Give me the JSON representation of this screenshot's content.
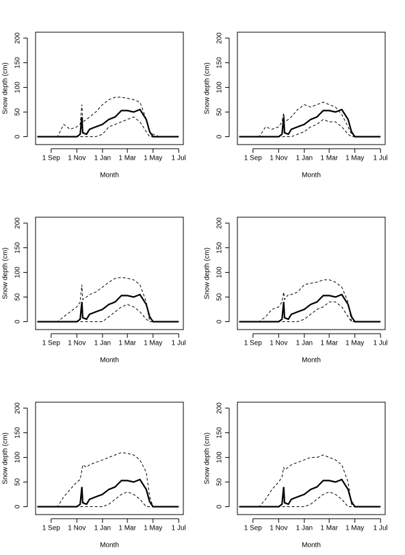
{
  "chart_data": [
    {
      "type": "line",
      "x_label": "Month",
      "y_label": "Snow depth (cm)",
      "x": [
        -2,
        15,
        31,
        46,
        61,
        76,
        92,
        100,
        104,
        106,
        115,
        122,
        137,
        153,
        168,
        183,
        198,
        212,
        227,
        242,
        257,
        265,
        273,
        288,
        303,
        320,
        334
      ],
      "xlim": [
        -6,
        345
      ],
      "xticks": [
        {
          "value": 31,
          "label": "1 Sep"
        },
        {
          "value": 92,
          "label": "1 Nov"
        },
        {
          "value": 153,
          "label": "1 Jan"
        },
        {
          "value": 212,
          "label": "1 Mar"
        },
        {
          "value": 273,
          "label": "1 May"
        },
        {
          "value": 334,
          "label": "1 Jul"
        }
      ],
      "ylim": [
        -16,
        212
      ],
      "yticks": [
        0,
        50,
        100,
        150,
        200
      ],
      "series": [
        {
          "color": "#000000",
          "style": "solid",
          "values": [
            0,
            0,
            0,
            0,
            0,
            0,
            0,
            5,
            40,
            8,
            5,
            15,
            20,
            25,
            35,
            40,
            53,
            53,
            50,
            55,
            35,
            10,
            0,
            0,
            0,
            0,
            0
          ]
        },
        {
          "color": "#000000",
          "style": "dashed",
          "values": [
            0,
            0,
            0,
            0,
            25,
            15,
            20,
            25,
            65,
            30,
            35,
            40,
            50,
            65,
            75,
            80,
            80,
            78,
            75,
            70,
            35,
            10,
            5,
            0,
            0,
            0,
            0
          ]
        },
        {
          "color": "#000000",
          "style": "dashed",
          "values": [
            0,
            0,
            0,
            0,
            0,
            0,
            0,
            0,
            0,
            0,
            0,
            0,
            0,
            5,
            20,
            25,
            30,
            35,
            40,
            30,
            10,
            0,
            0,
            0,
            0,
            0,
            0
          ]
        }
      ]
    },
    {
      "type": "line",
      "x_label": "Month",
      "y_label": "Snow depth (cm)",
      "x": [
        -2,
        15,
        31,
        46,
        61,
        76,
        92,
        100,
        104,
        106,
        115,
        122,
        137,
        153,
        168,
        183,
        198,
        212,
        227,
        242,
        257,
        265,
        273,
        288,
        303,
        320,
        334
      ],
      "xlim": [
        -6,
        345
      ],
      "xticks": [
        {
          "value": 31,
          "label": "1 Sep"
        },
        {
          "value": 92,
          "label": "1 Nov"
        },
        {
          "value": 153,
          "label": "1 Jan"
        },
        {
          "value": 212,
          "label": "1 Mar"
        },
        {
          "value": 273,
          "label": "1 May"
        },
        {
          "value": 334,
          "label": "1 Jul"
        }
      ],
      "ylim": [
        -16,
        212
      ],
      "yticks": [
        0,
        50,
        100,
        150,
        200
      ],
      "series": [
        {
          "color": "#000000",
          "style": "solid",
          "values": [
            0,
            0,
            0,
            0,
            0,
            0,
            0,
            5,
            40,
            8,
            5,
            15,
            20,
            25,
            35,
            40,
            53,
            53,
            50,
            55,
            35,
            10,
            0,
            0,
            0,
            0,
            0
          ]
        },
        {
          "color": "#000000",
          "style": "dashed",
          "values": [
            0,
            0,
            0,
            0,
            20,
            15,
            20,
            30,
            48,
            30,
            35,
            40,
            55,
            65,
            60,
            65,
            70,
            65,
            60,
            45,
            20,
            5,
            0,
            0,
            0,
            0,
            0
          ]
        },
        {
          "color": "#000000",
          "style": "dashed",
          "values": [
            0,
            0,
            0,
            0,
            0,
            0,
            0,
            0,
            0,
            0,
            0,
            0,
            5,
            10,
            20,
            25,
            35,
            30,
            30,
            20,
            5,
            0,
            0,
            0,
            0,
            0,
            0
          ]
        }
      ]
    },
    {
      "type": "line",
      "x_label": "Month",
      "y_label": "Snow depth (cm)",
      "x": [
        -2,
        15,
        31,
        46,
        61,
        76,
        92,
        100,
        104,
        106,
        115,
        122,
        137,
        153,
        168,
        183,
        198,
        212,
        227,
        242,
        257,
        265,
        273,
        288,
        303,
        320,
        334
      ],
      "xlim": [
        -6,
        345
      ],
      "xticks": [
        {
          "value": 31,
          "label": "1 Sep"
        },
        {
          "value": 92,
          "label": "1 Nov"
        },
        {
          "value": 153,
          "label": "1 Jan"
        },
        {
          "value": 212,
          "label": "1 Mar"
        },
        {
          "value": 273,
          "label": "1 May"
        },
        {
          "value": 334,
          "label": "1 Jul"
        }
      ],
      "ylim": [
        -16,
        212
      ],
      "yticks": [
        0,
        50,
        100,
        150,
        200
      ],
      "series": [
        {
          "color": "#000000",
          "style": "solid",
          "values": [
            0,
            0,
            0,
            0,
            0,
            0,
            0,
            5,
            40,
            8,
            5,
            15,
            20,
            25,
            35,
            40,
            53,
            53,
            50,
            55,
            35,
            10,
            0,
            0,
            0,
            0,
            0
          ]
        },
        {
          "color": "#000000",
          "style": "dashed",
          "values": [
            0,
            0,
            0,
            0,
            10,
            20,
            30,
            40,
            75,
            45,
            50,
            55,
            60,
            70,
            80,
            88,
            90,
            88,
            85,
            75,
            40,
            0,
            0,
            0,
            0,
            0,
            0
          ]
        },
        {
          "color": "#000000",
          "style": "dashed",
          "values": [
            0,
            0,
            0,
            0,
            0,
            0,
            0,
            0,
            0,
            0,
            0,
            0,
            0,
            0,
            10,
            20,
            30,
            35,
            30,
            20,
            5,
            0,
            0,
            0,
            0,
            0,
            0
          ]
        }
      ]
    },
    {
      "type": "line",
      "x_label": "Month",
      "y_label": "Snow depth (cm)",
      "x": [
        -2,
        15,
        31,
        46,
        61,
        76,
        92,
        100,
        104,
        106,
        115,
        122,
        137,
        153,
        168,
        183,
        198,
        212,
        227,
        242,
        257,
        265,
        273,
        288,
        303,
        320,
        334
      ],
      "xlim": [
        -6,
        345
      ],
      "xticks": [
        {
          "value": 31,
          "label": "1 Sep"
        },
        {
          "value": 92,
          "label": "1 Nov"
        },
        {
          "value": 153,
          "label": "1 Jan"
        },
        {
          "value": 212,
          "label": "1 Mar"
        },
        {
          "value": 273,
          "label": "1 May"
        },
        {
          "value": 334,
          "label": "1 Jul"
        }
      ],
      "ylim": [
        -16,
        212
      ],
      "yticks": [
        0,
        50,
        100,
        150,
        200
      ],
      "series": [
        {
          "color": "#000000",
          "style": "solid",
          "values": [
            0,
            0,
            0,
            0,
            0,
            0,
            0,
            5,
            40,
            8,
            5,
            15,
            20,
            25,
            35,
            40,
            53,
            53,
            50,
            55,
            35,
            10,
            0,
            0,
            0,
            0,
            0
          ]
        },
        {
          "color": "#000000",
          "style": "dashed",
          "values": [
            0,
            0,
            0,
            0,
            10,
            25,
            30,
            40,
            60,
            45,
            55,
            55,
            60,
            75,
            78,
            80,
            85,
            85,
            80,
            70,
            40,
            0,
            0,
            0,
            0,
            0,
            0
          ]
        },
        {
          "color": "#000000",
          "style": "dashed",
          "values": [
            0,
            0,
            0,
            0,
            0,
            0,
            0,
            0,
            0,
            0,
            0,
            0,
            0,
            5,
            15,
            25,
            30,
            40,
            40,
            30,
            10,
            0,
            0,
            0,
            0,
            0,
            0
          ]
        }
      ]
    },
    {
      "type": "line",
      "x_label": "Month",
      "y_label": "Snow depth (cm)",
      "x": [
        -2,
        15,
        31,
        46,
        61,
        76,
        92,
        100,
        104,
        106,
        115,
        122,
        137,
        153,
        168,
        183,
        198,
        212,
        227,
        242,
        257,
        265,
        273,
        288,
        303,
        320,
        334
      ],
      "xlim": [
        -6,
        345
      ],
      "xticks": [
        {
          "value": 31,
          "label": "1 Sep"
        },
        {
          "value": 92,
          "label": "1 Nov"
        },
        {
          "value": 153,
          "label": "1 Jan"
        },
        {
          "value": 212,
          "label": "1 Mar"
        },
        {
          "value": 273,
          "label": "1 May"
        },
        {
          "value": 334,
          "label": "1 Jul"
        }
      ],
      "ylim": [
        -16,
        212
      ],
      "yticks": [
        0,
        50,
        100,
        150,
        200
      ],
      "series": [
        {
          "color": "#000000",
          "style": "solid",
          "values": [
            0,
            0,
            0,
            0,
            0,
            0,
            0,
            5,
            40,
            8,
            5,
            15,
            20,
            25,
            35,
            40,
            53,
            53,
            50,
            55,
            35,
            10,
            0,
            0,
            0,
            0,
            0
          ]
        },
        {
          "color": "#000000",
          "style": "dashed",
          "values": [
            0,
            0,
            0,
            0,
            20,
            35,
            50,
            55,
            75,
            85,
            80,
            85,
            90,
            95,
            100,
            105,
            110,
            108,
            105,
            95,
            70,
            20,
            0,
            0,
            0,
            0,
            0
          ]
        },
        {
          "color": "#000000",
          "style": "dashed",
          "values": [
            0,
            0,
            0,
            0,
            0,
            0,
            0,
            0,
            0,
            0,
            0,
            0,
            0,
            0,
            5,
            15,
            25,
            30,
            25,
            15,
            0,
            0,
            0,
            0,
            0,
            0,
            0
          ]
        }
      ]
    },
    {
      "type": "line",
      "x_label": "Month",
      "y_label": "Snow depth (cm)",
      "x": [
        -2,
        15,
        31,
        46,
        61,
        76,
        92,
        100,
        104,
        106,
        115,
        122,
        137,
        153,
        168,
        183,
        198,
        212,
        227,
        242,
        257,
        265,
        273,
        288,
        303,
        320,
        334
      ],
      "xlim": [
        -6,
        345
      ],
      "xticks": [
        {
          "value": 31,
          "label": "1 Sep"
        },
        {
          "value": 92,
          "label": "1 Nov"
        },
        {
          "value": 153,
          "label": "1 Jan"
        },
        {
          "value": 212,
          "label": "1 Mar"
        },
        {
          "value": 273,
          "label": "1 May"
        },
        {
          "value": 334,
          "label": "1 Jul"
        }
      ],
      "ylim": [
        -16,
        212
      ],
      "yticks": [
        0,
        50,
        100,
        150,
        200
      ],
      "series": [
        {
          "color": "#000000",
          "style": "solid",
          "values": [
            0,
            0,
            0,
            0,
            0,
            0,
            0,
            5,
            40,
            8,
            5,
            15,
            20,
            25,
            35,
            40,
            53,
            53,
            50,
            55,
            35,
            10,
            0,
            0,
            0,
            0,
            0
          ]
        },
        {
          "color": "#000000",
          "style": "dashed",
          "values": [
            0,
            0,
            0,
            0,
            15,
            35,
            50,
            60,
            80,
            75,
            80,
            85,
            90,
            95,
            100,
            100,
            105,
            100,
            95,
            85,
            50,
            5,
            0,
            0,
            0,
            0,
            0
          ]
        },
        {
          "color": "#000000",
          "style": "dashed",
          "values": [
            0,
            0,
            0,
            0,
            0,
            0,
            0,
            0,
            0,
            0,
            0,
            0,
            0,
            0,
            5,
            15,
            25,
            30,
            25,
            15,
            0,
            0,
            0,
            0,
            0,
            0,
            0
          ]
        }
      ]
    }
  ]
}
